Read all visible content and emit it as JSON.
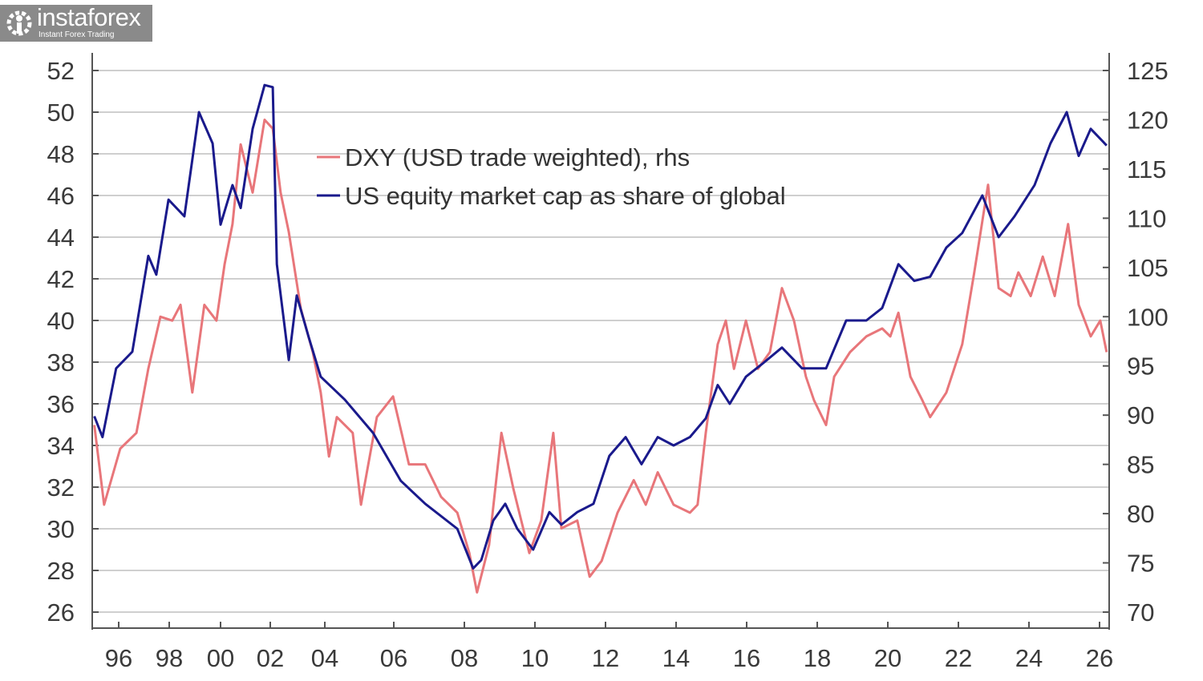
{
  "chart_data": {
    "type": "line",
    "title": "",
    "xlabel": "",
    "ylabel_left": "",
    "ylabel_right": "",
    "x_ticks": [
      {
        "year": 1996,
        "label": "96"
      },
      {
        "year": 1998,
        "label": "98"
      },
      {
        "year": 2000,
        "label": "00"
      },
      {
        "year": 2002,
        "label": "02"
      },
      {
        "year": 2004,
        "label": "04"
      },
      {
        "year": 2006,
        "label": "06"
      },
      {
        "year": 2008,
        "label": "08"
      },
      {
        "year": 2010,
        "label": "10"
      },
      {
        "year": 2012,
        "label": "12"
      },
      {
        "year": 2014,
        "label": "14"
      },
      {
        "year": 2016,
        "label": "16"
      },
      {
        "year": 2018,
        "label": "18"
      },
      {
        "year": 2020,
        "label": "20"
      },
      {
        "year": 2022,
        "label": "22"
      },
      {
        "year": 2024,
        "label": "24"
      },
      {
        "year": 2026,
        "label": "26"
      }
    ],
    "y_left": {
      "range": [
        26,
        52
      ],
      "ticks": [
        "26",
        "28",
        "30",
        "32",
        "34",
        "36",
        "38",
        "40",
        "42",
        "44",
        "46",
        "48",
        "50",
        "52"
      ]
    },
    "y_right": {
      "range": [
        70,
        125
      ],
      "ticks": [
        "70",
        "75",
        "80",
        "85",
        "90",
        "95",
        "100",
        "105",
        "110",
        "115",
        "120",
        "125"
      ]
    },
    "grid": true,
    "legend_position": "top-center",
    "series": [
      {
        "name": "DXY (USD trade weighted), rhs",
        "axis": "right",
        "color": "#e8767a",
        "points": [
          [
            1995.05,
            89
          ],
          [
            1995.43,
            80.9
          ],
          [
            1996.06,
            86.6
          ],
          [
            1996.7,
            88.2
          ],
          [
            1997.17,
            94.7
          ],
          [
            1997.65,
            100
          ],
          [
            1998.12,
            99.6
          ],
          [
            1998.44,
            101.2
          ],
          [
            1998.9,
            92.3
          ],
          [
            1999.37,
            101.2
          ],
          [
            1999.84,
            99.6
          ],
          [
            2000.16,
            105.3
          ],
          [
            2000.48,
            109.4
          ],
          [
            2000.81,
            117.5
          ],
          [
            2001.29,
            112.6
          ],
          [
            2001.77,
            120
          ],
          [
            2002.09,
            119.1
          ],
          [
            2002.38,
            112.6
          ],
          [
            2002.68,
            108.6
          ],
          [
            2003.12,
            100.8
          ],
          [
            2003.56,
            96.4
          ],
          [
            2003.85,
            92.3
          ],
          [
            2004.12,
            85.8
          ],
          [
            2004.35,
            89.8
          ],
          [
            2004.81,
            88.2
          ],
          [
            2005.05,
            80.9
          ],
          [
            2005.51,
            89.8
          ],
          [
            2005.98,
            91.9
          ],
          [
            2006.43,
            85
          ],
          [
            2006.89,
            85
          ],
          [
            2007.34,
            81.7
          ],
          [
            2007.8,
            80.1
          ],
          [
            2008.14,
            76
          ],
          [
            2008.36,
            72
          ],
          [
            2008.7,
            76.8
          ],
          [
            2009.05,
            88.2
          ],
          [
            2009.39,
            82.5
          ],
          [
            2009.84,
            76
          ],
          [
            2010.18,
            79.3
          ],
          [
            2010.52,
            88.2
          ],
          [
            2010.75,
            78.5
          ],
          [
            2011.2,
            79.3
          ],
          [
            2011.55,
            73.6
          ],
          [
            2011.89,
            75.2
          ],
          [
            2012.34,
            80.1
          ],
          [
            2012.8,
            83.4
          ],
          [
            2013.14,
            80.9
          ],
          [
            2013.48,
            84.2
          ],
          [
            2013.93,
            80.9
          ],
          [
            2014.39,
            80.1
          ],
          [
            2014.61,
            80.9
          ],
          [
            2014.84,
            88.2
          ],
          [
            2015.18,
            97.2
          ],
          [
            2015.41,
            99.6
          ],
          [
            2015.64,
            94.7
          ],
          [
            2015.98,
            99.6
          ],
          [
            2016.32,
            94.7
          ],
          [
            2016.66,
            96.4
          ],
          [
            2017,
            102.9
          ],
          [
            2017.34,
            99.6
          ],
          [
            2017.68,
            93.9
          ],
          [
            2017.91,
            91.5
          ],
          [
            2018.25,
            89
          ],
          [
            2018.48,
            93.9
          ],
          [
            2018.93,
            96.4
          ],
          [
            2019.39,
            98
          ],
          [
            2019.84,
            98.8
          ],
          [
            2020.07,
            98
          ],
          [
            2020.3,
            100.4
          ],
          [
            2020.64,
            93.9
          ],
          [
            2020.98,
            91.5
          ],
          [
            2021.2,
            89.8
          ],
          [
            2021.66,
            92.3
          ],
          [
            2022.11,
            97.2
          ],
          [
            2022.45,
            104.5
          ],
          [
            2022.84,
            113.4
          ],
          [
            2023.14,
            102.9
          ],
          [
            2023.48,
            102.1
          ],
          [
            2023.7,
            104.5
          ],
          [
            2024.05,
            102.1
          ],
          [
            2024.39,
            106.1
          ],
          [
            2024.73,
            102.1
          ],
          [
            2025.11,
            109.4
          ],
          [
            2025.41,
            101.2
          ],
          [
            2025.75,
            98
          ],
          [
            2026.02,
            99.6
          ],
          [
            2026.2,
            96.4
          ]
        ]
      },
      {
        "name": "US equity market cap as share of global",
        "axis": "left",
        "color": "#1a1a8c",
        "points": [
          [
            1995.05,
            35.4
          ],
          [
            1995.37,
            34.4
          ],
          [
            1995.9,
            37.7
          ],
          [
            1996.54,
            38.5
          ],
          [
            1997.17,
            43.1
          ],
          [
            1997.49,
            42.2
          ],
          [
            1997.97,
            45.8
          ],
          [
            1998.59,
            45
          ],
          [
            1999.16,
            50
          ],
          [
            1999.69,
            48.5
          ],
          [
            2000,
            44.6
          ],
          [
            2000.48,
            46.5
          ],
          [
            2000.81,
            45.4
          ],
          [
            2001.29,
            49.2
          ],
          [
            2001.77,
            51.3
          ],
          [
            2002.09,
            51.2
          ],
          [
            2002.24,
            42.7
          ],
          [
            2002.68,
            38.1
          ],
          [
            2002.97,
            41.2
          ],
          [
            2003.41,
            39.2
          ],
          [
            2003.85,
            37.3
          ],
          [
            2004.58,
            36.2
          ],
          [
            2005.4,
            34.6
          ],
          [
            2006.2,
            32.3
          ],
          [
            2006.89,
            31.2
          ],
          [
            2007.8,
            30
          ],
          [
            2008.25,
            28.1
          ],
          [
            2008.48,
            28.5
          ],
          [
            2008.82,
            30.4
          ],
          [
            2009.16,
            31.2
          ],
          [
            2009.5,
            30
          ],
          [
            2009.95,
            29
          ],
          [
            2010.41,
            30.8
          ],
          [
            2010.75,
            30.2
          ],
          [
            2011.2,
            30.8
          ],
          [
            2011.66,
            31.2
          ],
          [
            2012.11,
            33.5
          ],
          [
            2012.57,
            34.4
          ],
          [
            2013.02,
            33.1
          ],
          [
            2013.48,
            34.4
          ],
          [
            2013.93,
            34
          ],
          [
            2014.39,
            34.4
          ],
          [
            2014.84,
            35.3
          ],
          [
            2015.18,
            36.9
          ],
          [
            2015.52,
            36
          ],
          [
            2015.98,
            37.3
          ],
          [
            2016.43,
            37.9
          ],
          [
            2017,
            38.7
          ],
          [
            2017.57,
            37.7
          ],
          [
            2018.25,
            37.7
          ],
          [
            2018.82,
            40
          ],
          [
            2019.39,
            40
          ],
          [
            2019.84,
            40.6
          ],
          [
            2020.3,
            42.7
          ],
          [
            2020.75,
            41.9
          ],
          [
            2021.2,
            42.1
          ],
          [
            2021.66,
            43.5
          ],
          [
            2022.11,
            44.2
          ],
          [
            2022.68,
            46
          ],
          [
            2023.14,
            44
          ],
          [
            2023.59,
            45
          ],
          [
            2024.16,
            46.5
          ],
          [
            2024.61,
            48.5
          ],
          [
            2025.07,
            50
          ],
          [
            2025.41,
            47.9
          ],
          [
            2025.75,
            49.2
          ],
          [
            2026.09,
            48.6
          ],
          [
            2026.2,
            48.4
          ]
        ]
      }
    ]
  },
  "watermark": {
    "name": "instaforex",
    "tagline": "Instant Forex Trading"
  }
}
